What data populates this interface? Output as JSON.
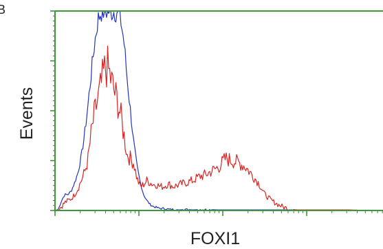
{
  "panel_letter": "B",
  "colors": {
    "frame": "#3a9a3a",
    "tick": "#2f8a2f",
    "control_series": "#2233bb",
    "sample_series": "#dd2222",
    "text": "#222222",
    "background": "#ffffff"
  },
  "chart_data": {
    "type": "line",
    "title": "",
    "xlabel": "FOXI1",
    "ylabel": "Events",
    "x_scale": "log",
    "xlim": [
      0,
      1
    ],
    "ylim": [
      0,
      100
    ],
    "grid": false,
    "legend": "none",
    "x_tick_labels": [],
    "y_tick_labels": [],
    "series": [
      {
        "color": "#2233bb",
        "x": [
          0.0,
          0.01,
          0.02,
          0.03,
          0.04,
          0.05,
          0.06,
          0.07,
          0.08,
          0.09,
          0.1,
          0.11,
          0.12,
          0.13,
          0.14,
          0.15,
          0.16,
          0.17,
          0.18,
          0.19,
          0.2,
          0.21,
          0.22,
          0.23,
          0.24,
          0.25,
          0.26,
          0.27,
          0.28,
          0.29,
          0.3,
          0.31,
          0.32,
          0.33,
          0.34,
          0.35,
          0.36,
          0.38,
          0.4,
          0.42,
          0.45,
          0.5,
          0.55,
          0.6,
          0.7,
          0.8,
          0.9
        ],
        "y": [
          0,
          0.5,
          5,
          8,
          8,
          10,
          14,
          19,
          27,
          38,
          52,
          68,
          83,
          95,
          100,
          100,
          100,
          100,
          100,
          100,
          96,
          85,
          66,
          50,
          34,
          22,
          14,
          8,
          5,
          3,
          2,
          1.5,
          1,
          1,
          0.8,
          0.5,
          0.5,
          0.3,
          0.5,
          0.3,
          0.5,
          0.3,
          0.3,
          0.3,
          0.3,
          0.3,
          0
        ]
      },
      {
        "color": "#dd2222",
        "x": [
          0.0,
          0.01,
          0.02,
          0.03,
          0.04,
          0.05,
          0.06,
          0.07,
          0.08,
          0.09,
          0.1,
          0.11,
          0.12,
          0.13,
          0.14,
          0.15,
          0.16,
          0.17,
          0.18,
          0.19,
          0.2,
          0.21,
          0.22,
          0.23,
          0.24,
          0.25,
          0.26,
          0.27,
          0.28,
          0.29,
          0.3,
          0.31,
          0.32,
          0.33,
          0.34,
          0.35,
          0.36,
          0.38,
          0.4,
          0.42,
          0.44,
          0.46,
          0.48,
          0.5,
          0.52,
          0.54,
          0.56,
          0.58,
          0.6,
          0.62,
          0.64,
          0.66,
          0.68,
          0.7,
          0.72,
          0.74,
          0.76,
          0.78,
          0.8,
          0.82,
          0.84,
          0.86,
          0.88,
          0.9,
          0.95
        ],
        "y": [
          0,
          0.5,
          2,
          4,
          5,
          6,
          8,
          11,
          15,
          19,
          25,
          38,
          48,
          55,
          62,
          70,
          72,
          66,
          60,
          55,
          48,
          38,
          28,
          26,
          24,
          16,
          12,
          13,
          15,
          14,
          13,
          13,
          12,
          12,
          13,
          13,
          12,
          13,
          14,
          15,
          17,
          18,
          20,
          22,
          26,
          25,
          24,
          22,
          18,
          14,
          8,
          5,
          3,
          1.5,
          0.5,
          0.3,
          0.3,
          0.3,
          0.3,
          0.3,
          0.3,
          0.3,
          0.3,
          0.3,
          0
        ]
      }
    ]
  }
}
